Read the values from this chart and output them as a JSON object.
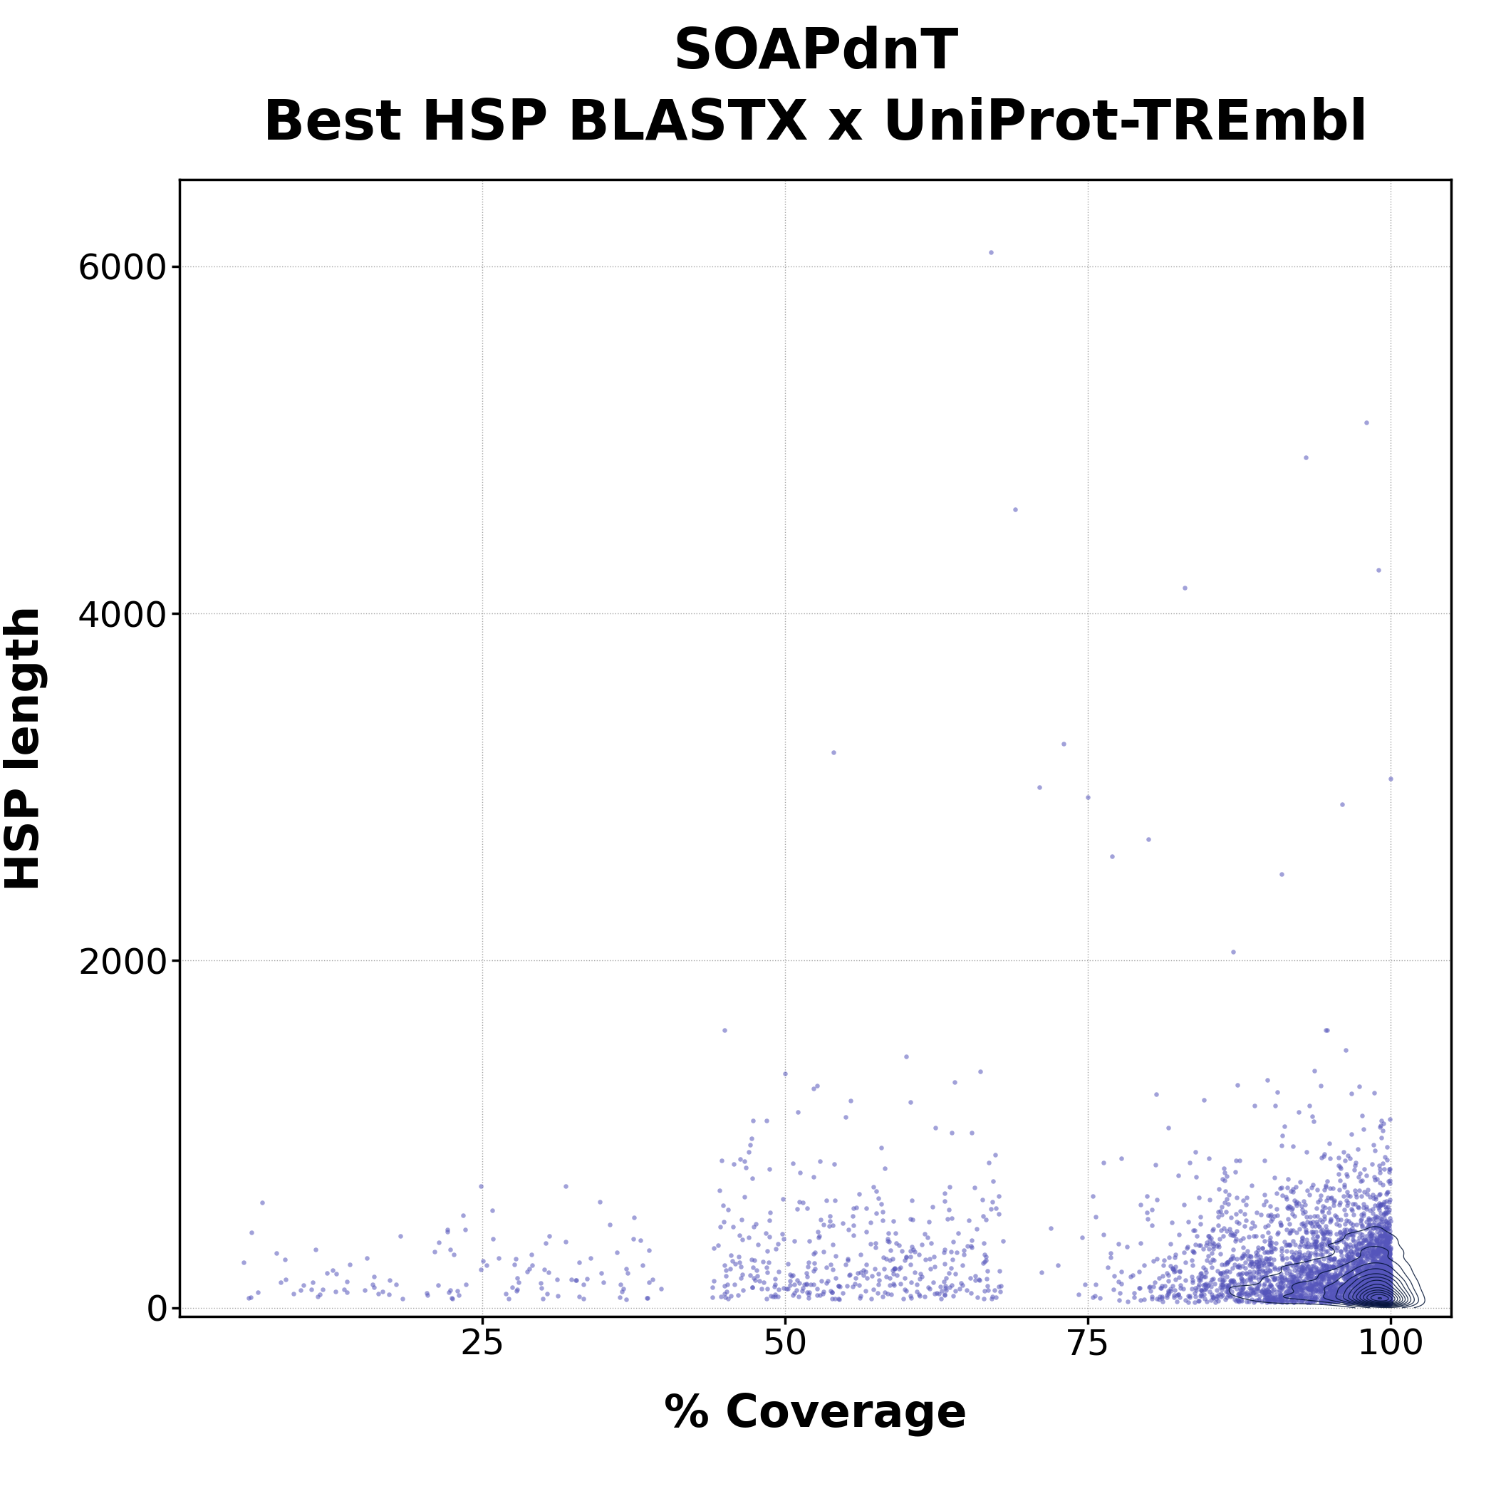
{
  "title_line1": "SOAPdnT",
  "title_line2": "Best HSP BLASTX x UniProt-TREmbl",
  "xlabel": "% Coverage",
  "ylabel": "HSP length",
  "xlim": [
    0,
    105
  ],
  "ylim": [
    -50,
    6500
  ],
  "xticks": [
    25,
    50,
    75,
    100
  ],
  "yticks": [
    0,
    2000,
    4000,
    6000
  ],
  "point_color": "#5555BB",
  "point_alpha": 0.55,
  "point_size": 22,
  "contour_color": "#001133",
  "background_color": "#ffffff",
  "grid_color": "#999999",
  "title_fontsize": 56,
  "axis_label_fontsize": 46,
  "tick_fontsize": 36
}
